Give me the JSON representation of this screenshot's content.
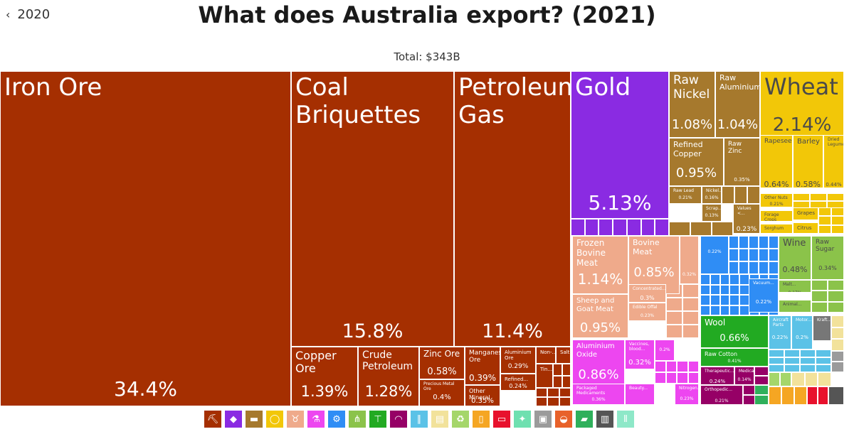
{
  "nav": {
    "back_label": "2020"
  },
  "header": {
    "title": "What does Australia export? (2021)",
    "subtitle": "Total: $343B"
  },
  "colors": {
    "mineral": "#A52F01",
    "precious": "#8A2BE2",
    "metals": "#A6792D",
    "vegetable": "#F2C708",
    "animal": "#EFAA8B",
    "chemical": "#ED46F0",
    "machines": "#2F8DF5",
    "textiles": "#22AA22",
    "instruments": "#960066",
    "transport": "#5BC2E7",
    "foodstuffs": "#8BC34A",
    "misc": "#777777"
  },
  "chart_data": {
    "type": "treemap",
    "title": "What does Australia export? (2021)",
    "total": "$343B",
    "items": [
      {
        "name": "Iron Ore",
        "pct": "34.4%",
        "category": "mineral"
      },
      {
        "name": "Coal Briquettes",
        "pct": "15.8%",
        "category": "mineral"
      },
      {
        "name": "Petroleum Gas",
        "pct": "11.4%",
        "category": "mineral"
      },
      {
        "name": "Copper Ore",
        "pct": "1.39%",
        "category": "mineral"
      },
      {
        "name": "Crude Petroleum",
        "pct": "1.28%",
        "category": "mineral"
      },
      {
        "name": "Zinc Ore",
        "pct": "0.58%",
        "category": "mineral"
      },
      {
        "name": "Manganese Ore",
        "pct": "0.39%",
        "category": "mineral"
      },
      {
        "name": "Aluminium Ore",
        "pct": "0.29%",
        "category": "mineral"
      },
      {
        "name": "Refined...",
        "pct": "0.24%",
        "category": "mineral"
      },
      {
        "name": "Other Mineral",
        "pct": "0.35%",
        "category": "mineral"
      },
      {
        "name": "Precious Metal Ore",
        "pct": "0.4%",
        "category": "mineral"
      },
      {
        "name": "Non-...",
        "pct": "",
        "category": "mineral"
      },
      {
        "name": "Salt",
        "pct": "",
        "category": "mineral"
      },
      {
        "name": "Tin...",
        "pct": "",
        "category": "mineral"
      },
      {
        "name": "Gold",
        "pct": "5.13%",
        "category": "precious"
      },
      {
        "name": "Raw Nickel",
        "pct": "1.08%",
        "category": "metals"
      },
      {
        "name": "Raw Aluminium",
        "pct": "1.04%",
        "category": "metals"
      },
      {
        "name": "Refined Copper",
        "pct": "0.95%",
        "category": "metals"
      },
      {
        "name": "Raw Zinc",
        "pct": "0.35%",
        "category": "metals"
      },
      {
        "name": "Raw Lead",
        "pct": "0.21%",
        "category": "metals"
      },
      {
        "name": "Nickel...",
        "pct": "0.16%",
        "category": "metals"
      },
      {
        "name": "Scrap...",
        "pct": "0.13%",
        "category": "metals"
      },
      {
        "name": "Values <...",
        "pct": "0.23%",
        "category": "metals"
      },
      {
        "name": "Wheat",
        "pct": "2.14%",
        "category": "vegetable"
      },
      {
        "name": "Rapeseed",
        "pct": "0.64%",
        "category": "vegetable"
      },
      {
        "name": "Barley",
        "pct": "0.58%",
        "category": "vegetable"
      },
      {
        "name": "Dried Legumes",
        "pct": "0.44%",
        "category": "vegetable"
      },
      {
        "name": "Other Nuts",
        "pct": "0.21%",
        "category": "vegetable"
      },
      {
        "name": "Forage Crops",
        "pct": "",
        "category": "vegetable"
      },
      {
        "name": "Grapes",
        "pct": "",
        "category": "vegetable"
      },
      {
        "name": "Sorghum",
        "pct": "",
        "category": "vegetable"
      },
      {
        "name": "Citrus",
        "pct": "",
        "category": "vegetable"
      },
      {
        "name": "Frozen Bovine Meat",
        "pct": "1.14%",
        "category": "animal"
      },
      {
        "name": "Bovine Meat",
        "pct": "0.85%",
        "category": "animal"
      },
      {
        "name": "Sheep and Goat Meat",
        "pct": "0.95%",
        "category": "animal"
      },
      {
        "name": "Concentrated...",
        "pct": "0.3%",
        "category": "animal"
      },
      {
        "name": "Edible Offal",
        "pct": "0.23%",
        "category": "animal"
      },
      {
        "name": "",
        "pct": "0.32%",
        "category": "animal"
      },
      {
        "name": "Aluminium Oxide",
        "pct": "0.86%",
        "category": "chemical"
      },
      {
        "name": "Vaccines, blood...",
        "pct": "0.32%",
        "category": "chemical"
      },
      {
        "name": "Packaged Medicaments",
        "pct": "0.36%",
        "category": "chemical"
      },
      {
        "name": "Beauty...",
        "pct": "",
        "category": "chemical"
      },
      {
        "name": "Nitrogen...",
        "pct": "0.23%",
        "category": "chemical"
      },
      {
        "name": "",
        "pct": "0.2%",
        "category": "chemical"
      },
      {
        "name": "",
        "pct": "0.22%",
        "category": "machines"
      },
      {
        "name": "Vacuum...",
        "pct": "0.22%",
        "category": "machines"
      },
      {
        "name": "Wine",
        "pct": "0.48%",
        "category": "foodstuffs"
      },
      {
        "name": "Raw Sugar",
        "pct": "0.34%",
        "category": "foodstuffs"
      },
      {
        "name": "Malt...",
        "pct": "0.17%",
        "category": "foodstuffs"
      },
      {
        "name": "Animal...",
        "pct": "",
        "category": "foodstuffs"
      },
      {
        "name": "Wool",
        "pct": "0.66%",
        "category": "textiles"
      },
      {
        "name": "Raw Cotton",
        "pct": "0.41%",
        "category": "textiles"
      },
      {
        "name": "Aircraft Parts",
        "pct": "0.22%",
        "category": "transport"
      },
      {
        "name": "Motor...",
        "pct": "0.2%",
        "category": "transport"
      },
      {
        "name": "Kraft...",
        "pct": "",
        "category": "misc"
      },
      {
        "name": "Therapeutic...",
        "pct": "0.24%",
        "category": "instruments"
      },
      {
        "name": "Medical...",
        "pct": "0.14%",
        "category": "instruments"
      },
      {
        "name": "Orthopedic...",
        "pct": "0.21%",
        "category": "instruments"
      }
    ]
  },
  "legend": [
    {
      "icon": "pickaxe-icon",
      "glyph": "⛏",
      "color": "#A52F01"
    },
    {
      "icon": "diamond-icon",
      "glyph": "◆",
      "color": "#8A2BE2"
    },
    {
      "icon": "anvil-icon",
      "glyph": "▬",
      "color": "#A6792D"
    },
    {
      "icon": "fruit-icon",
      "glyph": "◯",
      "color": "#F2C708"
    },
    {
      "icon": "cow-icon",
      "glyph": "♉",
      "color": "#EFAA8B"
    },
    {
      "icon": "flask-icon",
      "glyph": "⚗",
      "color": "#ED46F0"
    },
    {
      "icon": "gear-icon",
      "glyph": "⚙",
      "color": "#2F8DF5"
    },
    {
      "icon": "wheat-icon",
      "glyph": "⋔",
      "color": "#8BC34A"
    },
    {
      "icon": "shirt-icon",
      "glyph": "⊤",
      "color": "#22AA22"
    },
    {
      "icon": "gauge-icon",
      "glyph": "◠",
      "color": "#960066"
    },
    {
      "icon": "road-icon",
      "glyph": "∥",
      "color": "#5BC2E7"
    },
    {
      "icon": "paper-icon",
      "glyph": "▤",
      "color": "#F2E29B"
    },
    {
      "icon": "recycle-icon",
      "glyph": "♻",
      "color": "#A5D66A"
    },
    {
      "icon": "bottle-icon",
      "glyph": "▯",
      "color": "#F5A623"
    },
    {
      "icon": "ticket-icon",
      "glyph": "▭",
      "color": "#E8112D"
    },
    {
      "icon": "leather-icon",
      "glyph": "✦",
      "color": "#6FE0B0"
    },
    {
      "icon": "box-icon",
      "glyph": "▣",
      "color": "#9B9B9B"
    },
    {
      "icon": "shoes-icon",
      "glyph": "◒",
      "color": "#E8622A"
    },
    {
      "icon": "shoe-icon",
      "glyph": "▰",
      "color": "#2FB05B"
    },
    {
      "icon": "easel-icon",
      "glyph": "▥",
      "color": "#555555"
    },
    {
      "icon": "wood-icon",
      "glyph": "⦀",
      "color": "#8EE8C8"
    }
  ]
}
